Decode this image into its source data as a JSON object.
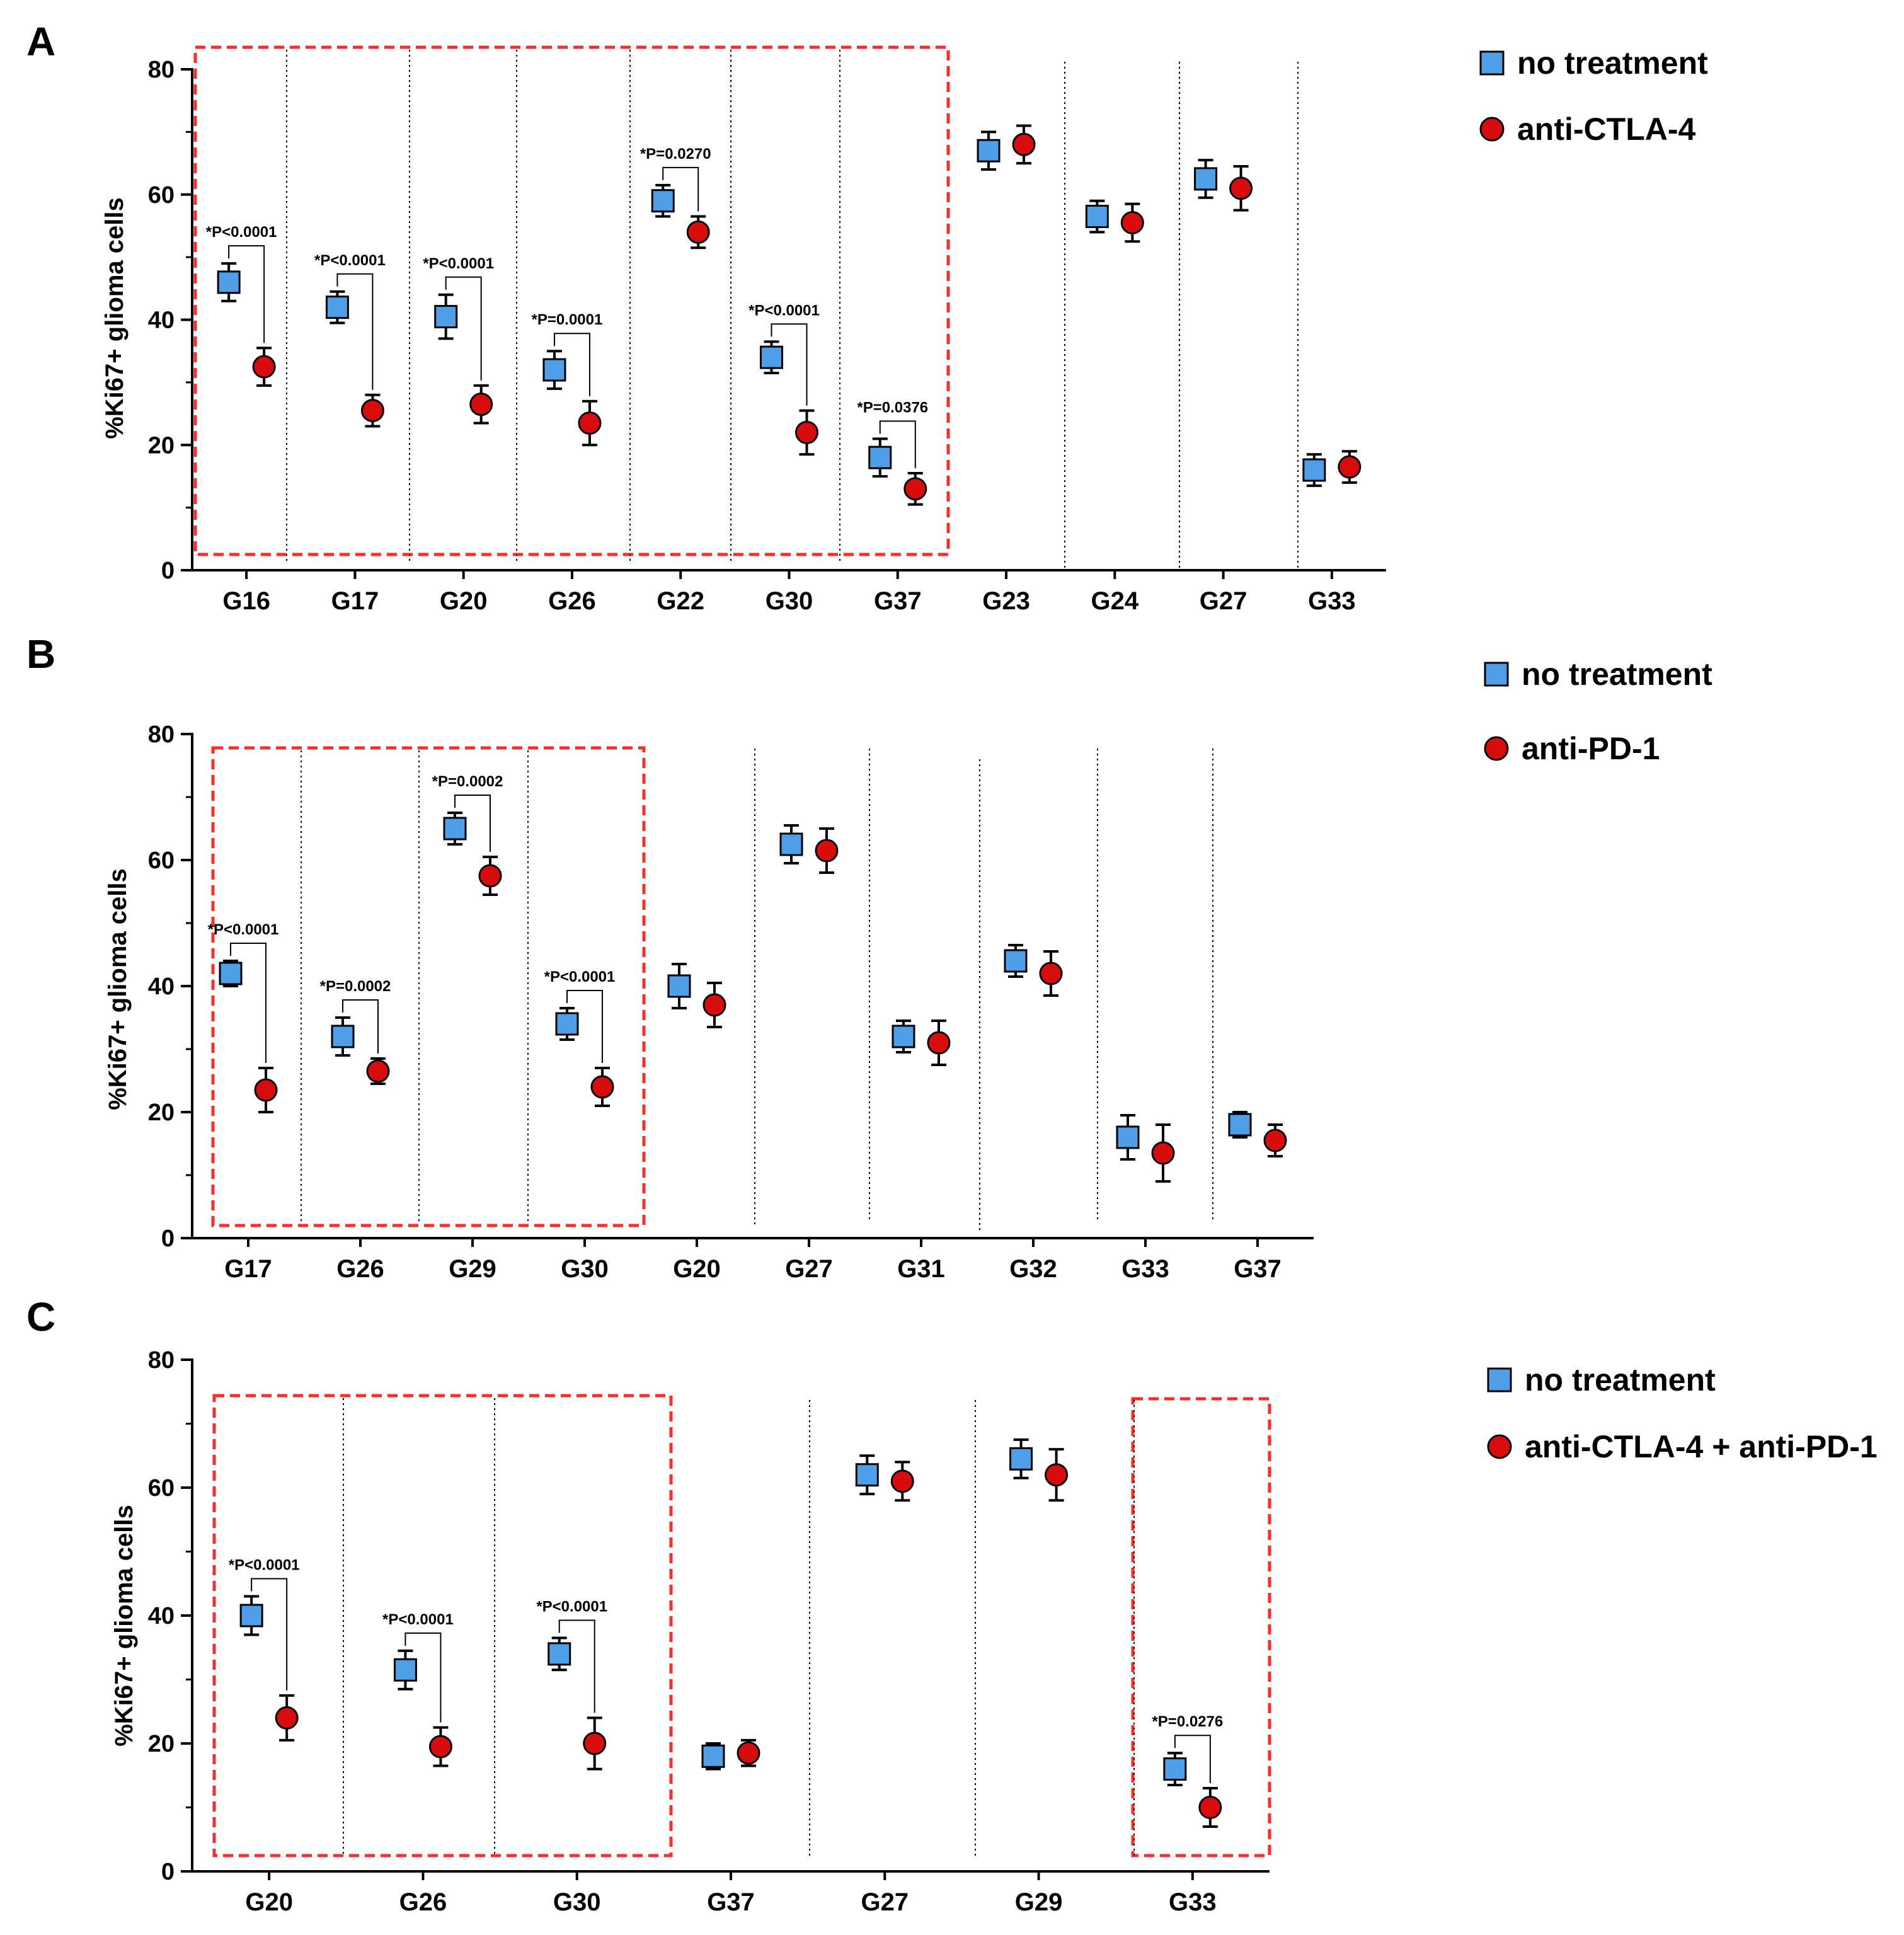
{
  "colors": {
    "no_treatment": "#4f9ee8",
    "treated": "#d80c0c",
    "highlight_box": "#ff2a2a",
    "axis": "#000000"
  },
  "marker_icons": {
    "no_treatment": "square-marker-icon",
    "treated": "circle-marker-icon"
  },
  "chart_data": [
    {
      "panel": "A",
      "type": "scatter",
      "ylabel": "%Ki67+ glioma cells",
      "ylim": [
        0,
        80
      ],
      "yticks": [
        "0",
        "20",
        "40",
        "60",
        "80"
      ],
      "categories": [
        "G16",
        "G17",
        "G20",
        "G26",
        "G22",
        "G30",
        "G37",
        "G23",
        "G24",
        "G27",
        "G33"
      ],
      "highlight_categories": [
        [
          0,
          6
        ]
      ],
      "legend": [
        "no treatment",
        "anti-CTLA-4"
      ],
      "series": [
        {
          "name": "no treatment",
          "values": [
            46,
            42,
            40.5,
            32,
            59,
            34,
            18,
            67,
            56.5,
            62.5,
            16
          ],
          "err": [
            3,
            2.5,
            3.5,
            3,
            2.5,
            2.5,
            3,
            3,
            2.5,
            3,
            2.5
          ]
        },
        {
          "name": "anti-CTLA-4",
          "values": [
            32.5,
            25.5,
            26.5,
            23.5,
            54,
            22,
            13,
            68,
            55.5,
            61,
            16.5
          ],
          "err": [
            3,
            2.5,
            3,
            3.5,
            2.5,
            3.5,
            2.5,
            3,
            3,
            3.5,
            2.5
          ]
        }
      ],
      "annotations": [
        {
          "cat": 0,
          "text": "*P<0.0001"
        },
        {
          "cat": 1,
          "text": "*P<0.0001"
        },
        {
          "cat": 2,
          "text": "*P<0.0001"
        },
        {
          "cat": 3,
          "text": "*P=0.0001"
        },
        {
          "cat": 4,
          "text": "*P=0.0270"
        },
        {
          "cat": 5,
          "text": "*P<0.0001"
        },
        {
          "cat": 6,
          "text": "*P=0.0376"
        }
      ]
    },
    {
      "panel": "B",
      "type": "scatter",
      "ylabel": "%Ki67+ glioma cells",
      "ylim": [
        0,
        80
      ],
      "yticks": [
        "0",
        "20",
        "40",
        "60",
        "80"
      ],
      "categories": [
        "G17",
        "G26",
        "G29",
        "G30",
        "G20",
        "G27",
        "G31",
        "G32",
        "G33",
        "G37"
      ],
      "highlight_categories": [
        [
          0,
          3
        ]
      ],
      "legend": [
        "no treatment",
        "anti-PD-1"
      ],
      "series": [
        {
          "name": "no treatment",
          "values": [
            42,
            32,
            65,
            34,
            40,
            62.5,
            32,
            44,
            16,
            18
          ],
          "err": [
            2,
            3,
            2.5,
            2.5,
            3.5,
            3,
            2.5,
            2.5,
            3.5,
            2
          ]
        },
        {
          "name": "anti-PD-1",
          "values": [
            23.5,
            26.5,
            57.5,
            24,
            37,
            61.5,
            31,
            42,
            13.5,
            15.5
          ],
          "err": [
            3.5,
            2,
            3,
            3,
            3.5,
            3.5,
            3.5,
            3.5,
            4.5,
            2.5
          ]
        }
      ],
      "annotations": [
        {
          "cat": 0,
          "text": "*P<0.0001"
        },
        {
          "cat": 1,
          "text": "*P=0.0002"
        },
        {
          "cat": 2,
          "text": "*P=0.0002"
        },
        {
          "cat": 3,
          "text": "*P<0.0001"
        }
      ]
    },
    {
      "panel": "C",
      "type": "scatter",
      "ylabel": "%Ki67+ glioma cells",
      "ylim": [
        0,
        80
      ],
      "yticks": [
        "0",
        "20",
        "40",
        "60",
        "80"
      ],
      "categories": [
        "G20",
        "G26",
        "G30",
        "G37",
        "G27",
        "G29",
        "G33"
      ],
      "highlight_categories": [
        [
          0,
          2
        ],
        [
          6,
          6
        ]
      ],
      "legend": [
        "no treatment",
        "anti-CTLA-4 + anti-PD-1"
      ],
      "series": [
        {
          "name": "no treatment",
          "values": [
            40,
            31.5,
            34,
            18,
            62,
            64.5,
            16
          ],
          "err": [
            3,
            3,
            2.5,
            2,
            3,
            3,
            2.5
          ]
        },
        {
          "name": "anti-CTLA-4 + anti-PD-1",
          "values": [
            24,
            19.5,
            20,
            18.5,
            61,
            62,
            10
          ],
          "err": [
            3.5,
            3,
            4,
            2,
            3,
            4,
            3
          ]
        }
      ],
      "annotations": [
        {
          "cat": 0,
          "text": "*P<0.0001"
        },
        {
          "cat": 1,
          "text": "*P<0.0001"
        },
        {
          "cat": 2,
          "text": "*P<0.0001"
        },
        {
          "cat": 6,
          "text": "*P=0.0276"
        }
      ]
    }
  ]
}
